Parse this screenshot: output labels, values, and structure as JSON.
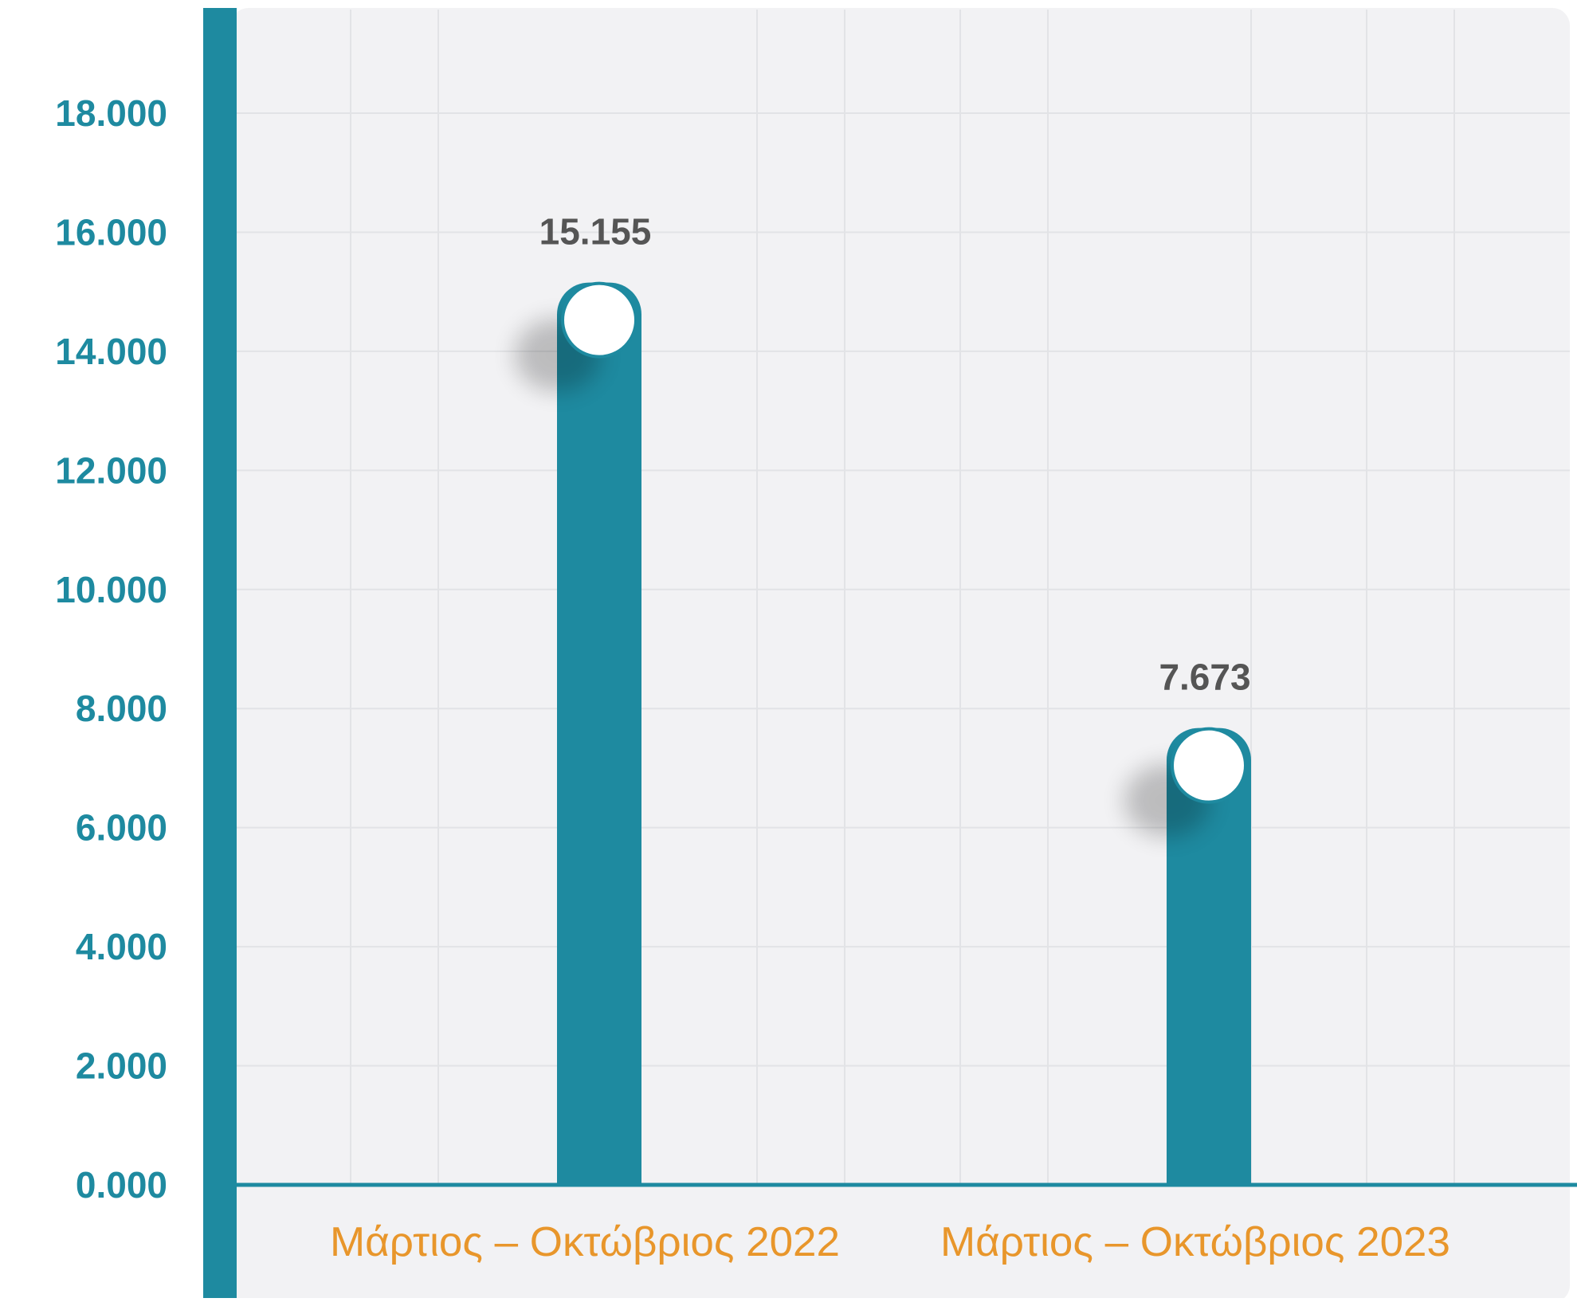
{
  "chart_data": {
    "type": "bar",
    "categories": [
      "Μάρτιος – Οκτώβριος 2022",
      "Μάρτιος – Οκτώβριος 2023"
    ],
    "values": [
      15155,
      7673
    ],
    "value_labels": [
      "15.155",
      "7.673"
    ],
    "title": "",
    "xlabel": "",
    "ylabel": "",
    "ylim": [
      0,
      18000
    ],
    "yticks": [
      0,
      2000,
      4000,
      6000,
      8000,
      10000,
      12000,
      14000,
      16000,
      18000
    ],
    "ytick_labels": [
      "0.000",
      "2.000",
      "4.000",
      "6.000",
      "8.000",
      "10.000",
      "12.000",
      "14.000",
      "16.000",
      "18.000"
    ],
    "grid": true,
    "legend": "none"
  },
  "colors": {
    "bar": "#1e8aa0",
    "axis": "#1e8aa0",
    "tick_label": "#1e8aa0",
    "value_label": "#555555",
    "category_label": "#e8962b",
    "plot_background": "#f2f2f4",
    "grid": "#e2e3e6",
    "marker_fill": "#ffffff"
  }
}
